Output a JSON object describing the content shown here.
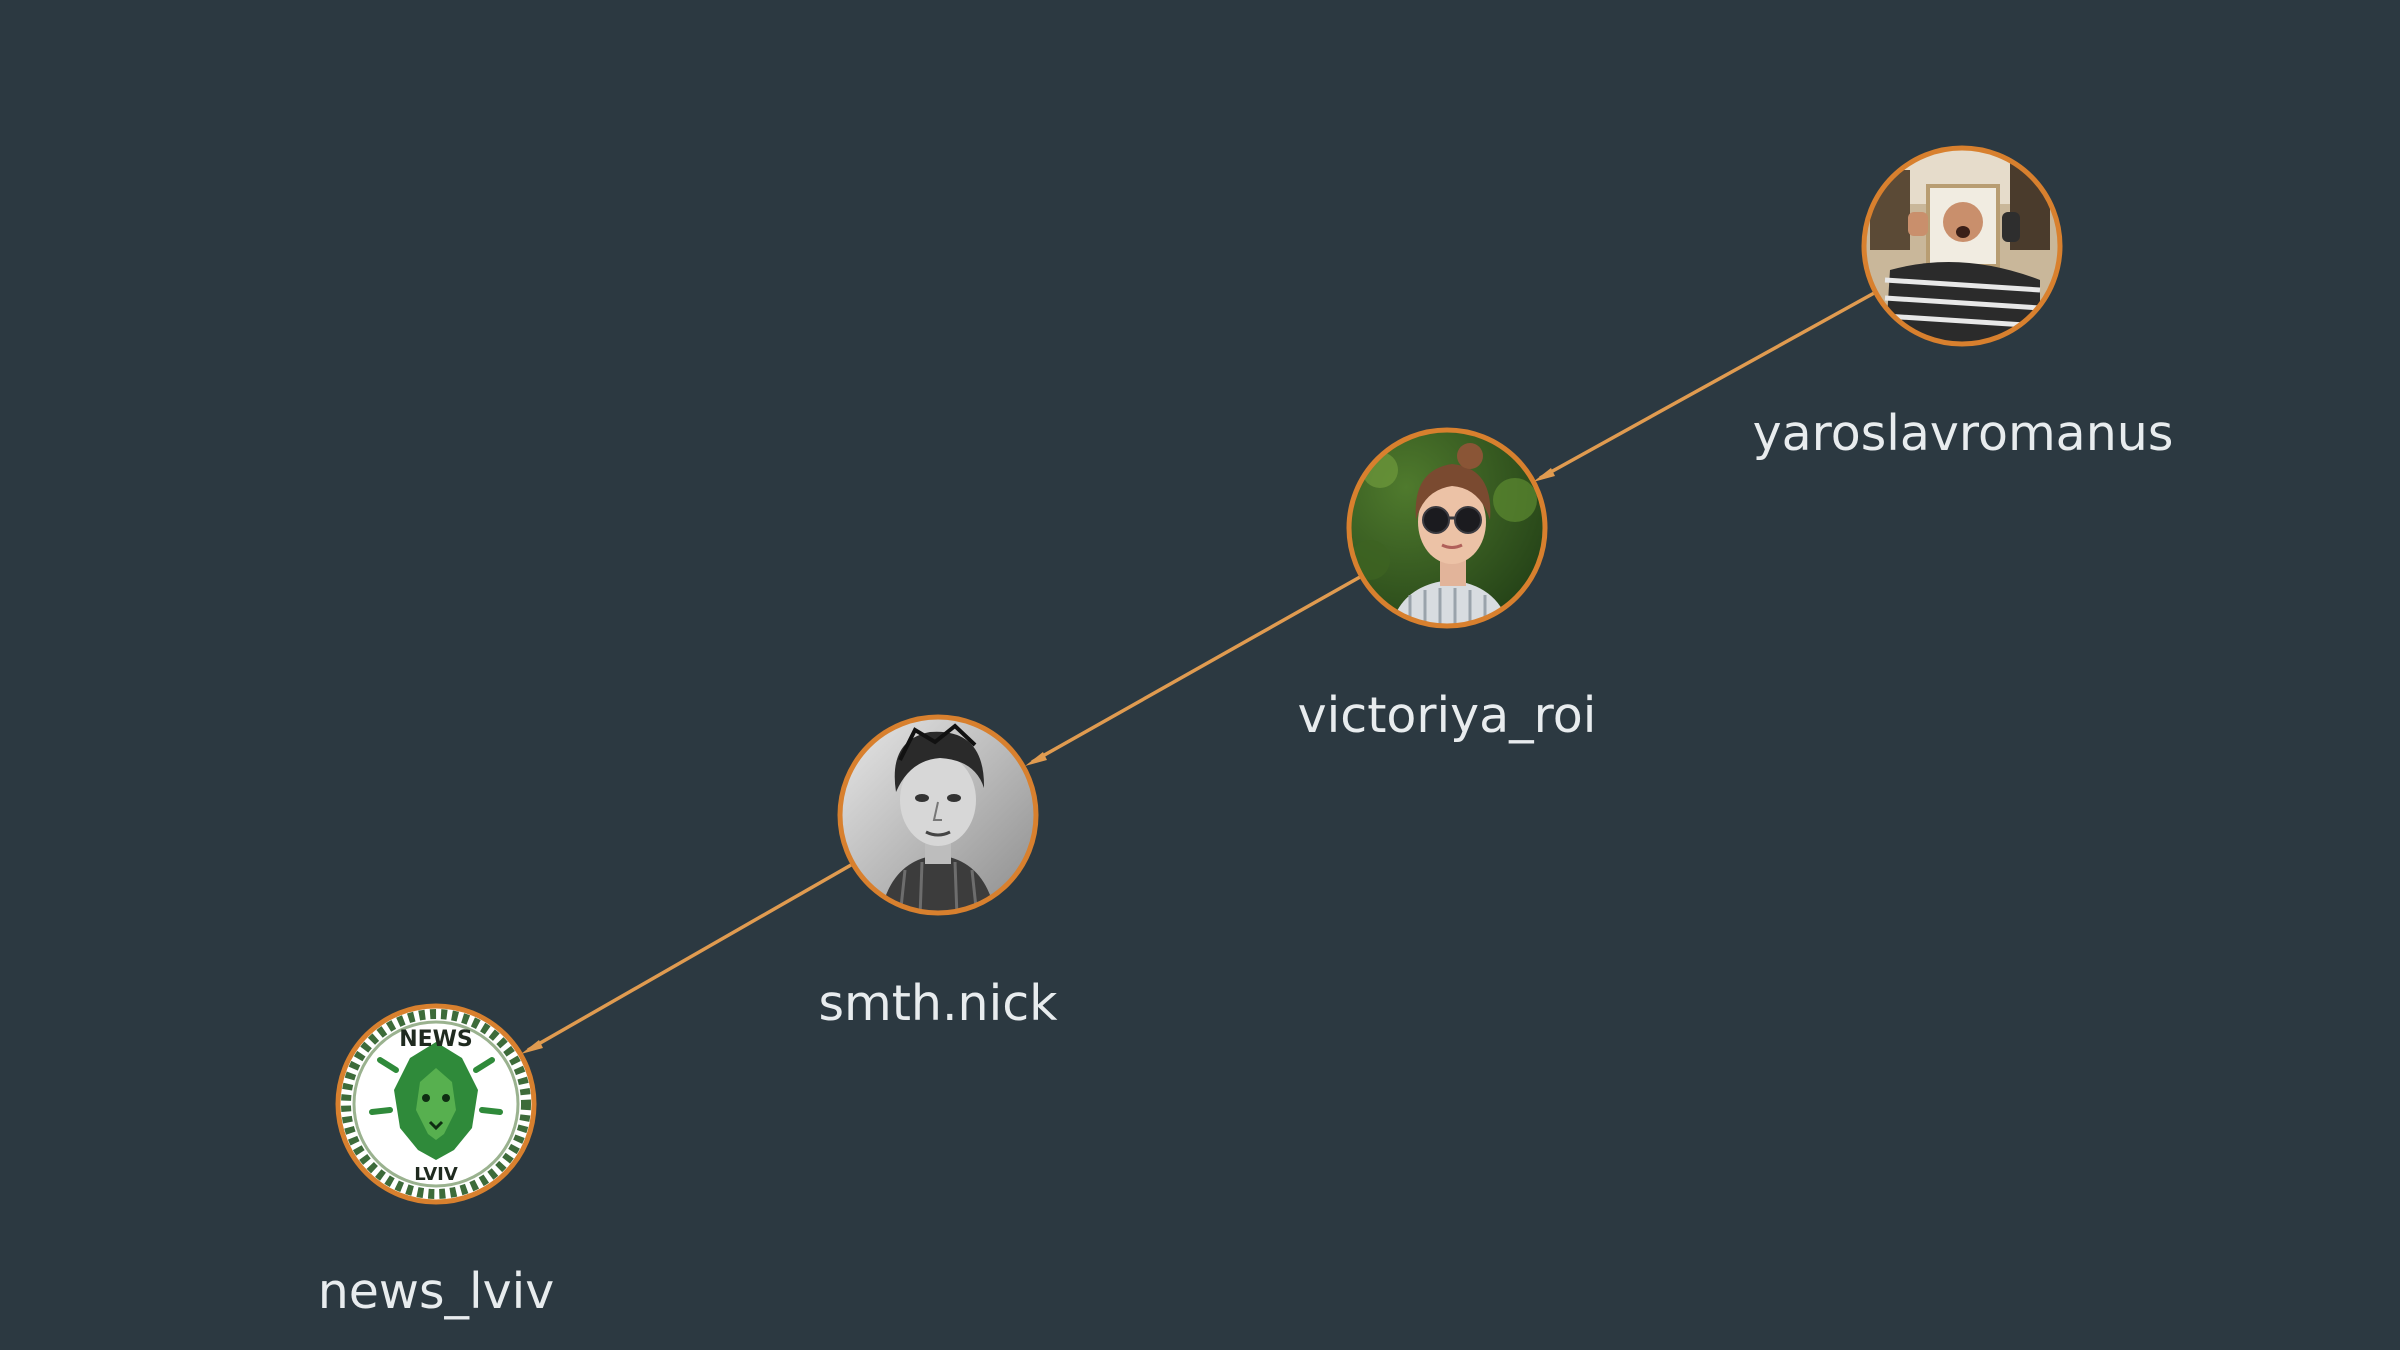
{
  "graph": {
    "colors": {
      "background": "#2c3941",
      "edge": "#e09b50",
      "node_ring": "#d8802e",
      "label": "#e8ecee"
    },
    "nodes": [
      {
        "id": "yaroslavromanus",
        "label": "yaroslavromanus",
        "avatar_icon": "person-holding-portrait-photo-icon"
      },
      {
        "id": "victoriya_roi",
        "label": "victoriya_roi",
        "avatar_icon": "woman-with-sunglasses-photo-icon"
      },
      {
        "id": "smth_nick",
        "label": "smth.nick",
        "avatar_icon": "pencil-drawn-portrait-icon"
      },
      {
        "id": "news_lviv",
        "label": "news_lviv",
        "avatar_icon": "green-lion-news-lviv-logo-icon",
        "logo_text": [
          "NEWS",
          "LVIV"
        ]
      }
    ],
    "edges": [
      {
        "from": "yaroslavromanus",
        "to": "victoriya_roi"
      },
      {
        "from": "victoriya_roi",
        "to": "smth_nick"
      },
      {
        "from": "smth_nick",
        "to": "news_lviv"
      }
    ]
  }
}
